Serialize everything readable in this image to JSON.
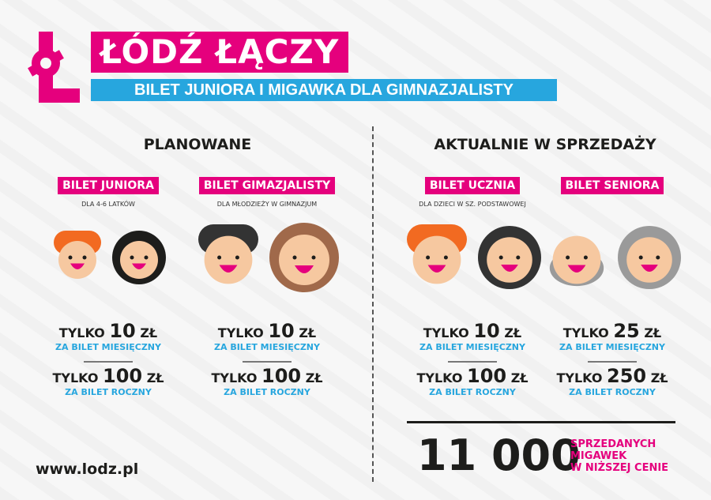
{
  "header": {
    "logo_letter": "Ł",
    "title": "ŁÓDŹ ŁĄCZY",
    "subtitle": "BILET JUNIORA I MIGAWKA DLA GIMNAZJALISTY"
  },
  "colors": {
    "pink": "#e5007d",
    "blue": "#27a6de"
  },
  "sections": {
    "planned": "PLANOWANE",
    "current": "AKTUALNIE W SPRZEDAŻY"
  },
  "tickets": [
    {
      "label": "BILET JUNIORA",
      "sub": "DLA 4-6 LATKÓW",
      "prefix": "TYLKO",
      "monthly": "10",
      "yearly": "100",
      "currency": "ZŁ",
      "monthly_label": "ZA BILET MIESIĘCZNY",
      "yearly_label": "ZA BILET ROCZNY"
    },
    {
      "label": "BILET GIMAZJALISTY",
      "sub": "DLA MŁODZIEŻY W GIMNAZJUM",
      "prefix": "TYLKO",
      "monthly": "10",
      "yearly": "100",
      "currency": "ZŁ",
      "monthly_label": "ZA BILET MIESIĘCZNY",
      "yearly_label": "ZA BILET ROCZNY"
    },
    {
      "label": "BILET UCZNIA",
      "sub": "DLA DZIECI W SZ. PODSTAWOWEJ",
      "prefix": "TYLKO",
      "monthly": "10",
      "yearly": "100",
      "currency": "ZŁ",
      "monthly_label": "ZA BILET MIESIĘCZNY",
      "yearly_label": "ZA BILET ROCZNY"
    },
    {
      "label": "BILET SENIORA",
      "sub": "",
      "prefix": "TYLKO",
      "monthly": "25",
      "yearly": "250",
      "currency": "ZŁ",
      "monthly_label": "ZA BILET MIESIĘCZNY",
      "yearly_label": "ZA BILET ROCZNY"
    }
  ],
  "stats": {
    "count": "11 000",
    "line1": "SPRZEDANYCH",
    "line2": "MIGAWEK",
    "line3": "W NIŻSZEJ CENIE"
  },
  "footer": {
    "url": "www.lodz.pl"
  }
}
